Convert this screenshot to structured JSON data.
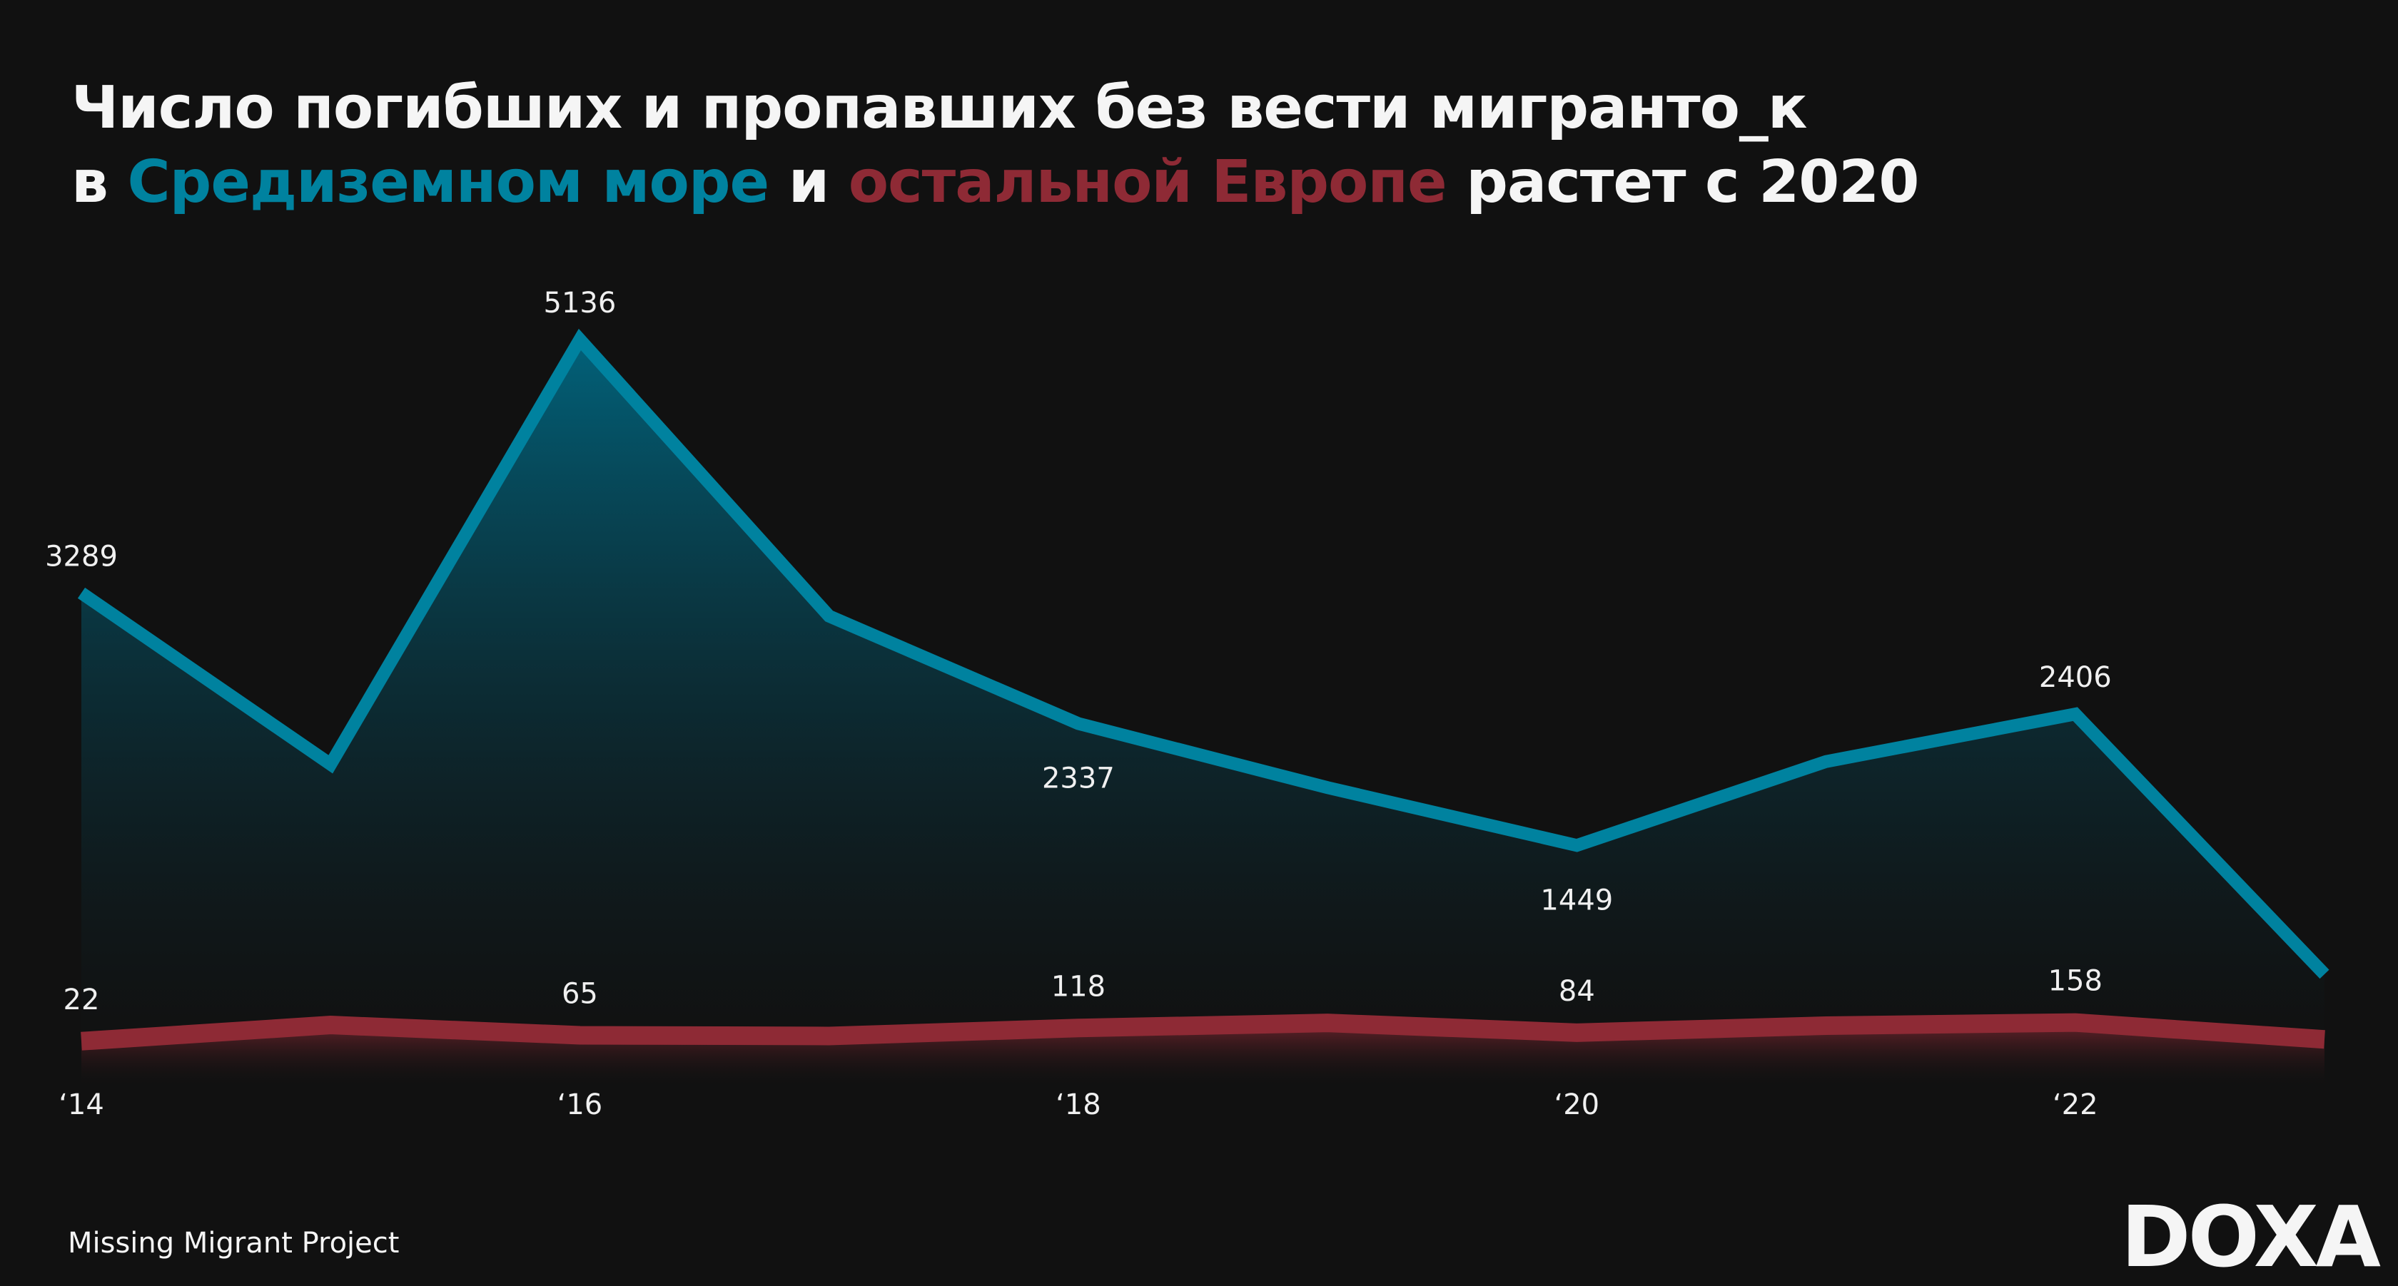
{
  "title": {
    "line1": "Число погибших и пропавших без вести мигранто_к",
    "line2_pre": "в ",
    "line2_blue": "Средиземном море",
    "line2_mid": " и ",
    "line2_red": "остальной Европе",
    "line2_post": " растет с 2020"
  },
  "source": "Missing Migrant Project",
  "logo": "DOXA",
  "colors": {
    "background": "#111111",
    "mediterranean": "#00829f",
    "europe": "#8e2a35"
  },
  "chart_data": {
    "type": "area",
    "x": [
      2014,
      2015,
      2016,
      2017,
      2018,
      2019,
      2020,
      2021,
      2022,
      2023
    ],
    "tick_labels": [
      "‘14",
      "‘16",
      "‘18",
      "‘20",
      "‘22"
    ],
    "tick_years": [
      2014,
      2016,
      2018,
      2020,
      2022
    ],
    "series": [
      {
        "name": "Средиземном море",
        "color": "#00829f",
        "values": [
          3289,
          2040,
          5136,
          3120,
          2337,
          1870,
          1449,
          2060,
          2406,
          510
        ],
        "labels": {
          "2014": "3289",
          "2016": "5136",
          "2018": "2337",
          "2020": "1449",
          "2022": "2406"
        }
      },
      {
        "name": "остальной Европе",
        "color": "#8e2a35",
        "values": [
          22,
          140,
          65,
          60,
          118,
          155,
          84,
          135,
          158,
          35
        ],
        "labels": {
          "2014": "22",
          "2016": "65",
          "2018": "118",
          "2020": "84",
          "2022": "158"
        }
      }
    ],
    "ylim": [
      0,
      5136
    ],
    "grid": false,
    "legend": "in title"
  }
}
